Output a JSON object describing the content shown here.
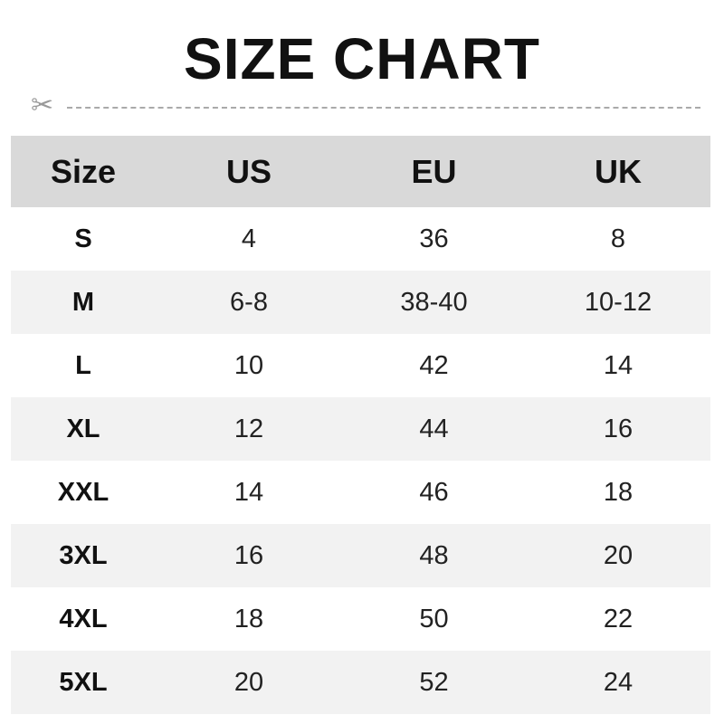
{
  "title": "SIZE CHART",
  "headers": [
    "Size",
    "US",
    "EU",
    "UK"
  ],
  "rows": [
    [
      "S",
      "4",
      "36",
      "8"
    ],
    [
      "M",
      "6-8",
      "38-40",
      "10-12"
    ],
    [
      "L",
      "10",
      "42",
      "14"
    ],
    [
      "XL",
      "12",
      "44",
      "16"
    ],
    [
      "XXL",
      "14",
      "46",
      "18"
    ],
    [
      "3XL",
      "16",
      "48",
      "20"
    ],
    [
      "4XL",
      "18",
      "50",
      "22"
    ],
    [
      "5XL",
      "20",
      "52",
      "24"
    ]
  ],
  "colors": {
    "header_bg": "#d9d9d9",
    "alt_row_bg": "#f2f2f2"
  },
  "icons": {
    "cut_line": "scissors-icon"
  }
}
